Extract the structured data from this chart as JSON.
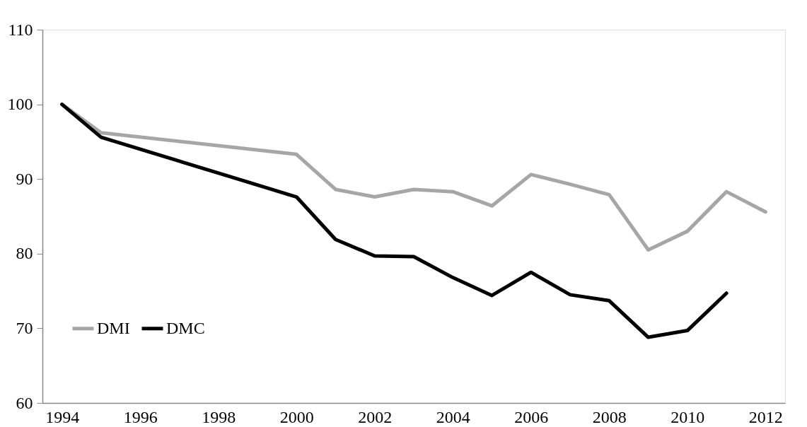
{
  "chart_data": {
    "type": "line",
    "xlim": [
      1993.5,
      2012.5
    ],
    "xticks": [
      1994,
      1996,
      1998,
      2000,
      2002,
      2004,
      2006,
      2008,
      2010,
      2012
    ],
    "ylim": [
      60,
      110
    ],
    "yticks": [
      60,
      70,
      80,
      90,
      100,
      110
    ],
    "grid": false,
    "legend": "left",
    "line_style": "solid",
    "series": [
      {
        "name": "DMI",
        "color": "#a6a6a6",
        "x": [
          1994,
          1995,
          2000,
          2001,
          2002,
          2003,
          2004,
          2005,
          2006,
          2007,
          2008,
          2009,
          2010,
          2011,
          2012
        ],
        "values": [
          100,
          96.2,
          93.3,
          88.6,
          87.6,
          88.6,
          88.3,
          86.4,
          90.6,
          89.3,
          87.9,
          80.5,
          83.0,
          88.3,
          85.6
        ]
      },
      {
        "name": "DMC",
        "color": "#000000",
        "x": [
          1994,
          1995,
          2000,
          2001,
          2002,
          2003,
          2004,
          2005,
          2006,
          2007,
          2008,
          2009,
          2010,
          2011
        ],
        "values": [
          100,
          95.6,
          87.6,
          81.9,
          79.7,
          79.6,
          76.8,
          74.4,
          77.5,
          74.5,
          73.7,
          68.8,
          69.7,
          74.7
        ]
      }
    ]
  }
}
